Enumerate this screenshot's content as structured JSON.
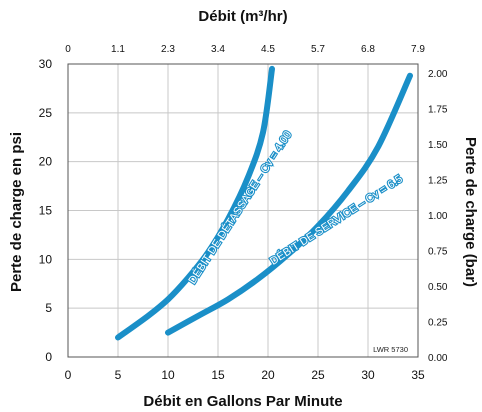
{
  "chart_data": {
    "type": "line",
    "top_axis": {
      "title": "Débit (m³/hr)",
      "ticks": [
        "0",
        "1.1",
        "2.3",
        "3.4",
        "4.5",
        "5.7",
        "6.8",
        "7.9"
      ]
    },
    "x_axis": {
      "title": "Débit en Gallons Par Minute",
      "range": [
        0,
        35
      ],
      "ticks": [
        0,
        5,
        10,
        15,
        20,
        25,
        30,
        35
      ]
    },
    "left_axis": {
      "title": "Perte de charge en psi",
      "range": [
        0,
        30
      ],
      "ticks": [
        0,
        5,
        10,
        15,
        20,
        25,
        30
      ]
    },
    "right_axis": {
      "title": "Perte de charge (bar)",
      "ticks": [
        "0.00",
        "0.25",
        "0.50",
        "0.75",
        "1.00",
        "1.25",
        "1.50",
        "1.75",
        "2.00"
      ]
    },
    "grid": true,
    "code": "LWR 5730",
    "series": [
      {
        "name": "DÉBIT DE DÉTASSAGE – Cv = 4.00",
        "color": "#1a8fc8",
        "x": [
          5,
          8,
          10,
          12,
          14,
          16,
          18,
          19.5,
          20.4
        ],
        "y": [
          2,
          4.2,
          5.9,
          8.1,
          10.7,
          14.1,
          18.4,
          23.0,
          29.5
        ]
      },
      {
        "name": "DÉBIT DE SERVICE – Cv = 6.5",
        "color": "#1a8fc8",
        "x": [
          10,
          13,
          16,
          19,
          22,
          25,
          28,
          31,
          34.2
        ],
        "y": [
          2.5,
          4.2,
          5.9,
          8.0,
          10.5,
          13.4,
          17.0,
          21.5,
          28.8
        ]
      }
    ]
  }
}
